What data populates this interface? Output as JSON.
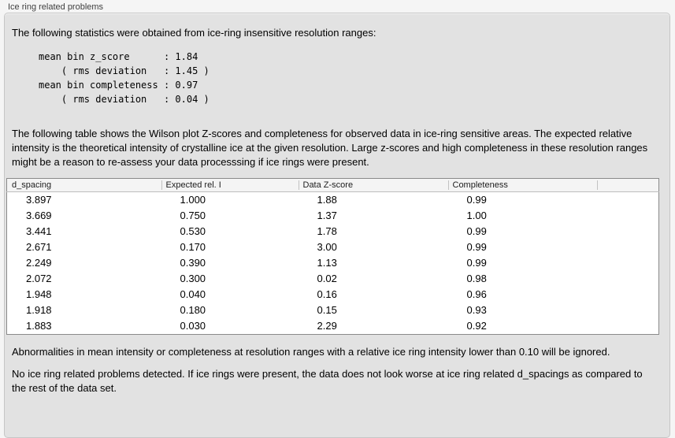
{
  "group_box": {
    "title": "Ice ring related problems"
  },
  "panel": {
    "intro": "The following statistics were obtained from ice-ring insensitive resolution ranges:",
    "stats_block": "mean bin z_score      : 1.84\n    ( rms deviation   : 1.45 )\nmean bin completeness : 0.97\n    ( rms deviation   : 0.04 )",
    "stats": {
      "mean_bin_z_score": "1.84",
      "z_score_rms_deviation": "1.45",
      "mean_bin_completeness": "0.97",
      "completeness_rms_deviation": "0.04"
    },
    "table_description": "The following table shows the Wilson plot Z-scores and completeness for observed data in ice-ring sensitive areas. The expected relative intensity is the theoretical intensity of crystalline ice at the given resolution. Large z-scores and high completeness in these resolution ranges might be a reason to re-assess your data processsing if ice rings were present.",
    "table": {
      "columns": [
        "d_spacing",
        "Expected rel. I",
        "Data Z-score",
        "Completeness"
      ],
      "rows": [
        [
          "3.897",
          "1.000",
          "1.88",
          "0.99"
        ],
        [
          "3.669",
          "0.750",
          "1.37",
          "1.00"
        ],
        [
          "3.441",
          "0.530",
          "1.78",
          "0.99"
        ],
        [
          "2.671",
          "0.170",
          "3.00",
          "0.99"
        ],
        [
          "2.249",
          "0.390",
          "1.13",
          "0.99"
        ],
        [
          "2.072",
          "0.300",
          "0.02",
          "0.98"
        ],
        [
          "1.948",
          "0.040",
          "0.16",
          "0.96"
        ],
        [
          "1.918",
          "0.180",
          "0.15",
          "0.93"
        ],
        [
          "1.883",
          "0.030",
          "2.29",
          "0.92"
        ]
      ]
    },
    "ignore_note": "Abnormalities in mean intensity or completeness at resolution ranges with a relative ice ring intensity lower than 0.10 will be ignored.",
    "conclusion": "No ice ring related problems detected. If ice rings were present, the data does not look worse at ice ring related d_spacings as compared to the rest of the data set."
  },
  "colors": {
    "window_background": "#f5f5f5",
    "panel_background": "#e2e2e2",
    "panel_border": "#c6c6c6",
    "table_border": "#8a8a8a",
    "table_header_background": "#f4f4f4",
    "table_body_background": "#ffffff"
  }
}
